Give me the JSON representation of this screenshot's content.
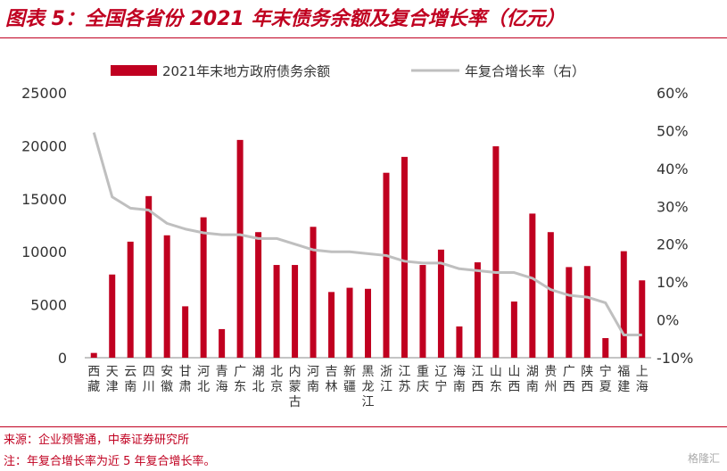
{
  "title": "图表 5：全国各省份 2021 年末债务余额及复合增长率（亿元）",
  "source": "来源：企业预警通，中泰证券研究所",
  "note": "注：年复合增长率为近 5 年复合增长率。",
  "watermark": "格隆汇",
  "colors": {
    "bar": "#c00020",
    "line": "#bfbfbf",
    "accent": "#c00020"
  },
  "chart_data": {
    "type": "bar",
    "categories": [
      "西藏",
      "天津",
      "云南",
      "四川",
      "安徽",
      "甘肃",
      "河北",
      "青海",
      "广东",
      "湖北",
      "北京",
      "内蒙古",
      "河南",
      "吉林",
      "新疆",
      "黑龙江",
      "浙江",
      "江苏",
      "重庆",
      "辽宁",
      "海南",
      "江西",
      "山东",
      "山西",
      "湖南",
      "贵州",
      "广西",
      "陕西",
      "宁夏",
      "福建",
      "上海"
    ],
    "series": [
      {
        "name": "2021年末地方政府债务余额",
        "type": "bar",
        "axis": "left",
        "values": [
          450,
          7850,
          10950,
          15250,
          11550,
          4850,
          13250,
          2700,
          20550,
          11850,
          8750,
          8750,
          12350,
          6200,
          6600,
          6500,
          17450,
          18950,
          8750,
          10200,
          2950,
          9000,
          19950,
          5300,
          13600,
          11850,
          8550,
          8650,
          1850,
          10050,
          7300
        ]
      },
      {
        "name": "年复合增长率（右）",
        "type": "line",
        "axis": "right",
        "values": [
          49.5,
          32.5,
          29.5,
          29,
          25.5,
          24,
          23,
          22.5,
          22.5,
          21.5,
          21.5,
          20,
          18.5,
          18,
          18,
          17.5,
          17,
          15.5,
          15,
          15,
          13.5,
          13,
          12.5,
          12.5,
          11,
          8,
          6.5,
          6,
          4.5,
          -4,
          -4
        ]
      }
    ],
    "ylim": [
      0,
      25000
    ],
    "yticks": [
      "0",
      "5000",
      "10000",
      "15000",
      "20000",
      "25000"
    ],
    "y2lim": [
      -10,
      60
    ],
    "y2ticks": [
      "-10%",
      "0%",
      "10%",
      "20%",
      "30%",
      "40%",
      "50%",
      "60%"
    ],
    "legend": "top"
  }
}
